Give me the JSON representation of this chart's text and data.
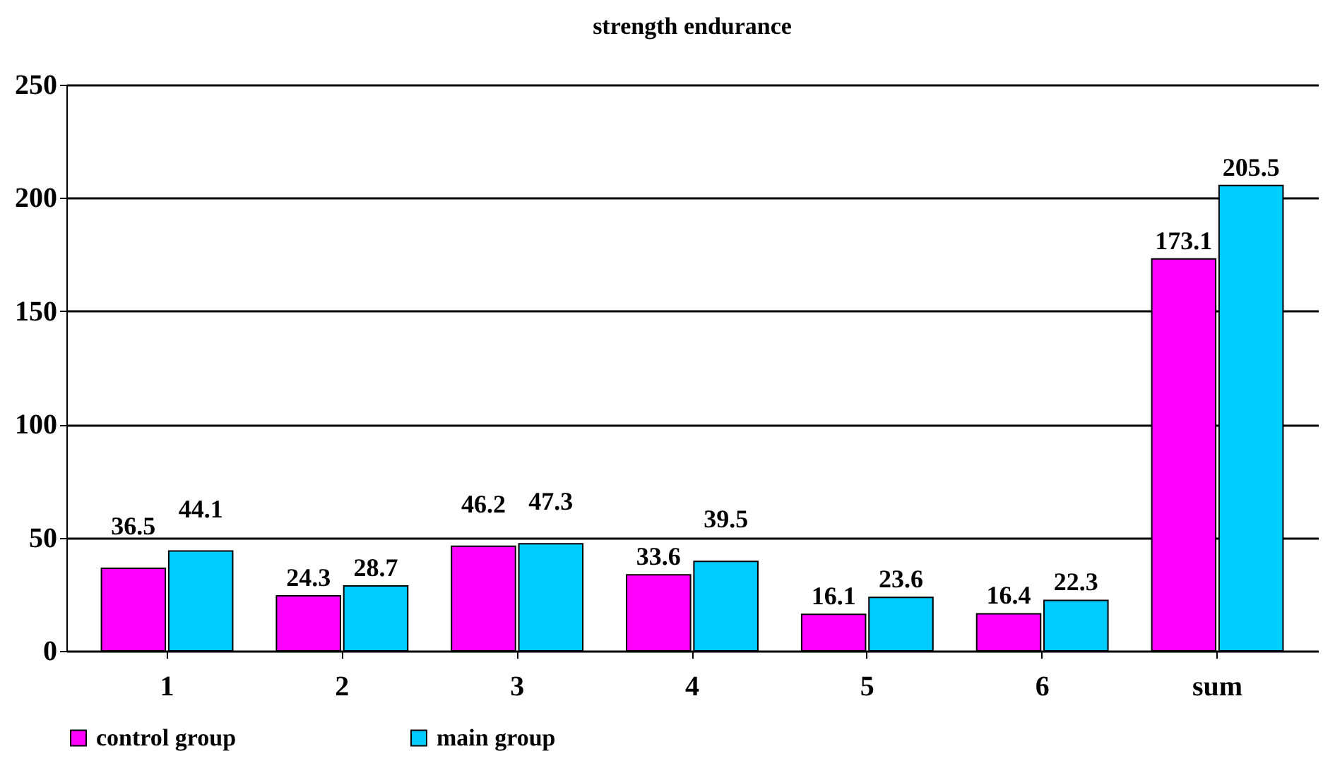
{
  "chart_data": {
    "type": "bar",
    "title": "strength endurance",
    "categories": [
      "1",
      "2",
      "3",
      "4",
      "5",
      "6",
      "sum"
    ],
    "series": [
      {
        "name": "control group",
        "color": "#ff00ff",
        "values": [
          36.5,
          24.3,
          46.2,
          33.6,
          16.1,
          16.4,
          173.1
        ]
      },
      {
        "name": "main group",
        "color": "#00ccff",
        "values": [
          44.1,
          28.7,
          47.3,
          39.5,
          23.6,
          22.3,
          205.5
        ]
      }
    ],
    "ylim": [
      0,
      250
    ],
    "yticks": [
      0,
      50,
      100,
      150,
      200,
      250
    ],
    "grid": "y",
    "legend": "bottom",
    "data_labels": true
  }
}
